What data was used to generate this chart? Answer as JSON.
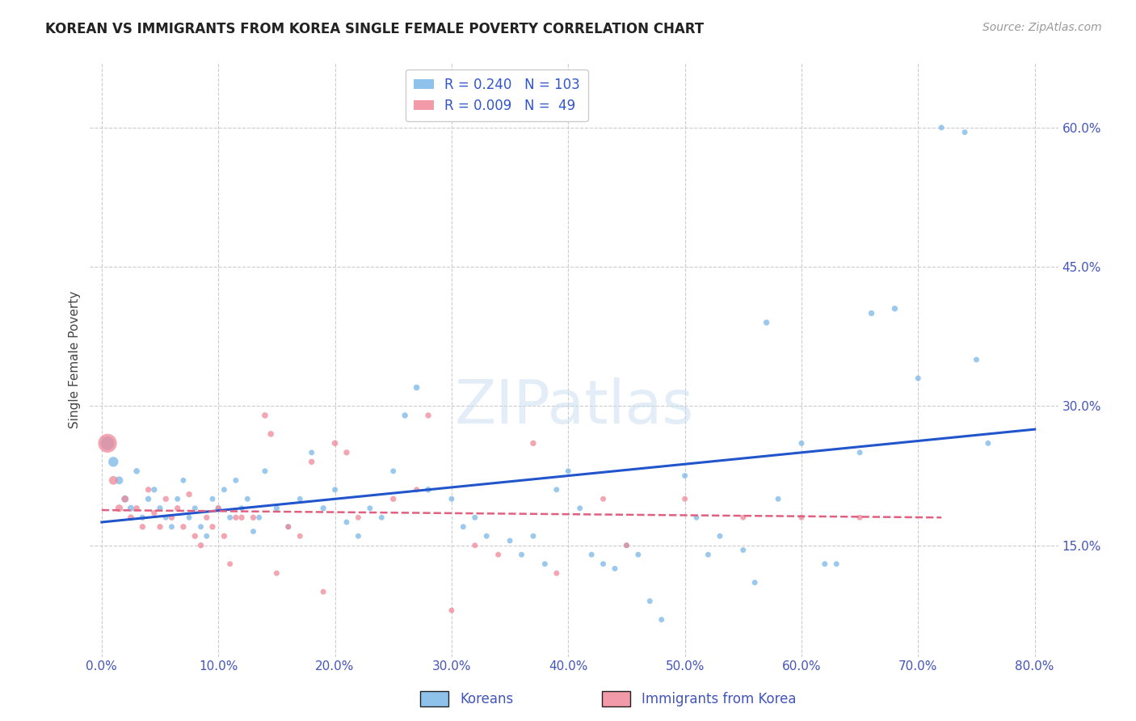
{
  "title": "KOREAN VS IMMIGRANTS FROM KOREA SINGLE FEMALE POVERTY CORRELATION CHART",
  "source": "Source: ZipAtlas.com",
  "xlabel_ticks": [
    "0.0%",
    "10.0%",
    "20.0%",
    "30.0%",
    "40.0%",
    "50.0%",
    "60.0%",
    "70.0%",
    "80.0%"
  ],
  "xlabel_vals": [
    0,
    10,
    20,
    30,
    40,
    50,
    60,
    70,
    80
  ],
  "ylabel": "Single Female Poverty",
  "ytick_labels": [
    "15.0%",
    "30.0%",
    "45.0%",
    "60.0%"
  ],
  "ytick_vals": [
    15,
    30,
    45,
    60
  ],
  "xlim": [
    -1,
    82
  ],
  "ylim": [
    3,
    67
  ],
  "watermark": "ZIPatlas",
  "koreans_color": "#7ab8e8",
  "immigrants_color": "#f08898",
  "blue_line_color": "#2255cc",
  "pink_line_color": "#e06080",
  "grid_color": "#cccccc",
  "background_color": "#ffffff",
  "koreans_x": [
    0.5,
    1.0,
    1.5,
    2.0,
    2.5,
    3.0,
    3.5,
    4.0,
    4.5,
    5.0,
    5.5,
    6.0,
    6.5,
    7.0,
    7.5,
    8.0,
    8.5,
    9.0,
    9.5,
    10.0,
    10.5,
    11.0,
    11.5,
    12.0,
    12.5,
    13.0,
    13.5,
    14.0,
    15.0,
    16.0,
    17.0,
    18.0,
    19.0,
    20.0,
    21.0,
    22.0,
    23.0,
    24.0,
    25.0,
    26.0,
    27.0,
    28.0,
    30.0,
    31.0,
    32.0,
    33.0,
    35.0,
    36.0,
    37.0,
    38.0,
    39.0,
    40.0,
    41.0,
    42.0,
    43.0,
    44.0,
    45.0,
    46.0,
    47.0,
    48.0,
    50.0,
    51.0,
    52.0,
    53.0,
    55.0,
    56.0,
    57.0,
    58.0,
    60.0,
    62.0,
    63.0,
    65.0,
    66.0,
    68.0,
    70.0,
    72.0,
    74.0,
    75.0,
    76.0
  ],
  "koreans_y": [
    26.0,
    24.0,
    22.0,
    20.0,
    19.0,
    23.0,
    18.0,
    20.0,
    21.0,
    19.0,
    18.0,
    17.0,
    20.0,
    22.0,
    18.0,
    19.0,
    17.0,
    16.0,
    20.0,
    19.0,
    21.0,
    18.0,
    22.0,
    19.0,
    20.0,
    16.5,
    18.0,
    23.0,
    19.0,
    17.0,
    20.0,
    25.0,
    19.0,
    21.0,
    17.5,
    16.0,
    19.0,
    18.0,
    23.0,
    29.0,
    32.0,
    21.0,
    20.0,
    17.0,
    18.0,
    16.0,
    15.5,
    14.0,
    16.0,
    13.0,
    21.0,
    23.0,
    19.0,
    14.0,
    13.0,
    12.5,
    15.0,
    14.0,
    9.0,
    7.0,
    22.5,
    18.0,
    14.0,
    16.0,
    14.5,
    11.0,
    39.0,
    20.0,
    26.0,
    13.0,
    13.0,
    25.0,
    40.0,
    40.5,
    33.0,
    60.0,
    59.5,
    35.0,
    26.0
  ],
  "koreans_size": [
    150,
    80,
    50,
    40,
    35,
    30,
    28,
    28,
    28,
    28,
    25,
    25,
    25,
    25,
    25,
    25,
    25,
    25,
    25,
    25,
    25,
    25,
    25,
    25,
    25,
    25,
    25,
    25,
    28,
    25,
    25,
    25,
    28,
    25,
    25,
    25,
    25,
    25,
    25,
    28,
    30,
    30,
    25,
    25,
    25,
    25,
    25,
    25,
    25,
    25,
    25,
    25,
    25,
    25,
    25,
    25,
    25,
    25,
    25,
    25,
    25,
    25,
    25,
    25,
    25,
    25,
    28,
    25,
    25,
    25,
    25,
    25,
    28,
    28,
    25,
    25,
    25,
    25,
    25
  ],
  "immigrants_x": [
    0.5,
    1.0,
    1.5,
    2.0,
    2.5,
    3.0,
    3.5,
    4.0,
    4.5,
    5.0,
    5.5,
    6.0,
    6.5,
    7.0,
    7.5,
    8.0,
    8.5,
    9.0,
    9.5,
    10.0,
    10.5,
    11.0,
    11.5,
    12.0,
    13.0,
    14.0,
    14.5,
    15.0,
    16.0,
    17.0,
    18.0,
    19.0,
    20.0,
    21.0,
    22.0,
    25.0,
    27.0,
    28.0,
    30.0,
    32.0,
    34.0,
    37.0,
    39.0,
    43.0,
    45.0,
    50.0,
    55.0,
    60.0,
    65.0
  ],
  "immigrants_y": [
    26.0,
    22.0,
    19.0,
    20.0,
    18.0,
    19.0,
    17.0,
    21.0,
    18.5,
    17.0,
    20.0,
    18.0,
    19.0,
    17.0,
    20.5,
    16.0,
    15.0,
    18.0,
    17.0,
    19.0,
    16.0,
    13.0,
    18.0,
    18.0,
    18.0,
    29.0,
    27.0,
    12.0,
    17.0,
    16.0,
    24.0,
    10.0,
    26.0,
    25.0,
    18.0,
    20.0,
    21.0,
    29.0,
    8.0,
    15.0,
    14.0,
    26.0,
    12.0,
    20.0,
    15.0,
    20.0,
    18.0,
    18.0,
    18.0
  ],
  "immigrants_size": [
    280,
    60,
    45,
    38,
    32,
    28,
    28,
    28,
    28,
    28,
    28,
    28,
    28,
    28,
    28,
    28,
    28,
    28,
    28,
    28,
    28,
    25,
    28,
    28,
    28,
    30,
    30,
    25,
    25,
    25,
    28,
    25,
    30,
    28,
    25,
    28,
    25,
    28,
    25,
    25,
    25,
    28,
    25,
    25,
    25,
    25,
    25,
    25,
    25
  ],
  "blue_line_x": [
    0,
    80
  ],
  "blue_line_y": [
    17.5,
    27.5
  ],
  "pink_line_x": [
    0,
    72
  ],
  "pink_line_y": [
    18.8,
    18.0
  ]
}
